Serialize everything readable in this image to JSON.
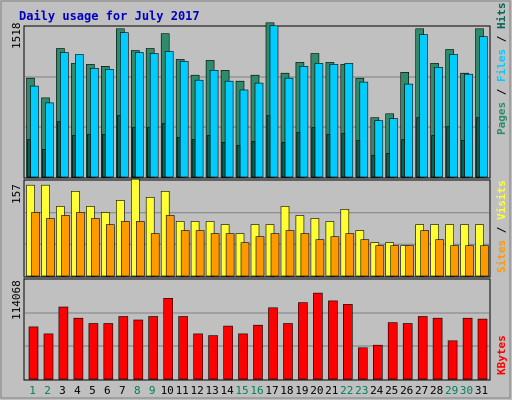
{
  "title": "Daily usage for July 2017",
  "colors": {
    "background": "#c0c0c0",
    "title": "#0000c0",
    "pages": "#2e8b6b",
    "files": "#00ccff",
    "hits": "#006655",
    "visits": "#ffff33",
    "sites": "#ff9900",
    "kbytes": "#ff0000",
    "weekend": "#00805c",
    "weekday": "#000000"
  },
  "axis_labels": {
    "hits_max": "1518",
    "visits_max": "157",
    "kbytes_max": "114068"
  },
  "legend": {
    "hits_panel": [
      "Pages",
      "/",
      "Files",
      "/",
      "Hits"
    ],
    "visits_panel": [
      "Sites",
      "/",
      "Visits"
    ],
    "kbytes_panel": [
      "KBytes"
    ]
  },
  "chart_data": [
    {
      "type": "bar",
      "title": "Daily usage for July 2017",
      "ylim": [
        0,
        1518
      ],
      "categories": [
        "1",
        "2",
        "3",
        "4",
        "5",
        "6",
        "7",
        "8",
        "9",
        "10",
        "11",
        "12",
        "13",
        "14",
        "15",
        "16",
        "17",
        "18",
        "19",
        "20",
        "21",
        "22",
        "23",
        "24",
        "25",
        "26",
        "27",
        "28",
        "29",
        "30",
        "31"
      ],
      "weekend_days": [
        "1",
        "2",
        "8",
        "9",
        "15",
        "16",
        "22",
        "23",
        "29",
        "30"
      ],
      "series": [
        {
          "name": "Hits",
          "values": [
            1000,
            800,
            1300,
            1150,
            1140,
            1120,
            1500,
            1280,
            1300,
            1450,
            1190,
            1030,
            1180,
            1080,
            970,
            1030,
            1560,
            1050,
            1160,
            1250,
            1160,
            1140,
            1000,
            600,
            640,
            1060,
            1500,
            1150,
            1290,
            1050,
            1500
          ]
        },
        {
          "name": "Files",
          "values": [
            920,
            750,
            1260,
            1240,
            1100,
            1090,
            1460,
            1260,
            1250,
            1270,
            1170,
            980,
            1080,
            970,
            880,
            950,
            1530,
            1000,
            1120,
            1150,
            1140,
            1150,
            960,
            570,
            590,
            940,
            1440,
            1110,
            1240,
            1040,
            1420
          ]
        },
        {
          "name": "Pages",
          "values": [
            380,
            280,
            560,
            420,
            430,
            430,
            620,
            500,
            500,
            540,
            400,
            380,
            420,
            350,
            320,
            360,
            620,
            350,
            450,
            500,
            430,
            440,
            370,
            220,
            240,
            380,
            600,
            420,
            510,
            370,
            600
          ]
        }
      ]
    },
    {
      "type": "bar",
      "ylim": [
        0,
        157
      ],
      "categories": [
        "1",
        "2",
        "3",
        "4",
        "5",
        "6",
        "7",
        "8",
        "9",
        "10",
        "11",
        "12",
        "13",
        "14",
        "15",
        "16",
        "17",
        "18",
        "19",
        "20",
        "21",
        "22",
        "23",
        "24",
        "25",
        "26",
        "27",
        "28",
        "29",
        "30",
        "31"
      ],
      "series": [
        {
          "name": "Visits",
          "values": [
            150,
            150,
            115,
            140,
            115,
            105,
            125,
            160,
            130,
            140,
            90,
            90,
            90,
            85,
            70,
            85,
            85,
            115,
            100,
            95,
            90,
            110,
            75,
            55,
            55,
            50,
            85,
            85,
            85,
            85,
            85
          ]
        },
        {
          "name": "Sites",
          "values": [
            105,
            95,
            100,
            105,
            95,
            85,
            90,
            90,
            70,
            100,
            75,
            75,
            70,
            70,
            55,
            65,
            70,
            75,
            70,
            60,
            65,
            70,
            60,
            50,
            50,
            50,
            75,
            60,
            50,
            50,
            50
          ]
        }
      ]
    },
    {
      "type": "bar",
      "ylim": [
        0,
        114068
      ],
      "categories": [
        "1",
        "2",
        "3",
        "4",
        "5",
        "6",
        "7",
        "8",
        "9",
        "10",
        "11",
        "12",
        "13",
        "14",
        "15",
        "16",
        "17",
        "18",
        "19",
        "20",
        "21",
        "22",
        "23",
        "24",
        "25",
        "26",
        "27",
        "28",
        "29",
        "30",
        "31"
      ],
      "series": [
        {
          "name": "KBytes",
          "values": [
            60000,
            52000,
            83000,
            70000,
            64000,
            64000,
            72000,
            68000,
            72000,
            93000,
            72000,
            52000,
            50000,
            61000,
            52000,
            62000,
            82000,
            64000,
            88000,
            99000,
            90000,
            86000,
            36000,
            39000,
            65000,
            64000,
            72000,
            70000,
            44000,
            70000,
            69000
          ]
        }
      ]
    }
  ]
}
